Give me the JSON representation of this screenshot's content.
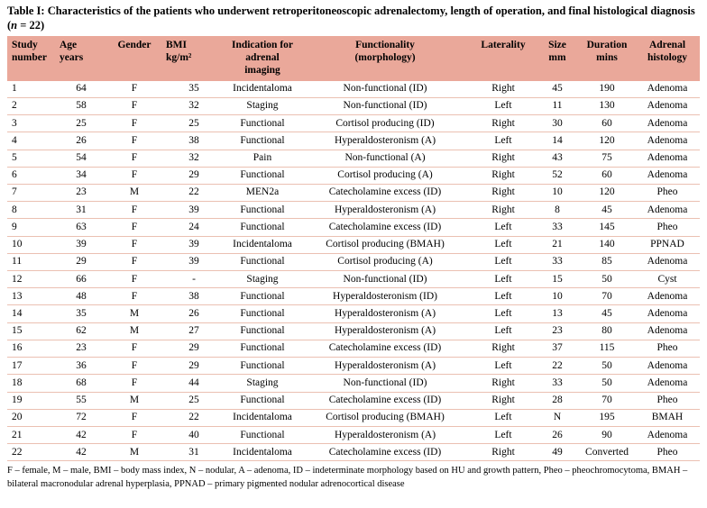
{
  "title": {
    "line1": "Table I: Characteristics of the patients who underwent retroperitoneoscopic adrenalectomy, length of operation, and final histological diagnosis",
    "open": "(",
    "n_symbol": "n",
    "rest": " = 22)"
  },
  "table": {
    "headers": [
      "Study\nnumber",
      "Age\nyears",
      "Gender",
      "BMI\nkg/m²",
      "Indication for\nadrenal imaging",
      "Functionality\n(morphology)",
      "Laterality",
      "Size\nmm",
      "Duration\nmins",
      "Adrenal\nhistology"
    ],
    "rows": [
      [
        "1",
        "64",
        "F",
        "35",
        "Incidentaloma",
        "Non-functional (ID)",
        "Right",
        "45",
        "190",
        "Adenoma"
      ],
      [
        "2",
        "58",
        "F",
        "32",
        "Staging",
        "Non-functional (ID)",
        "Left",
        "11",
        "130",
        "Adenoma"
      ],
      [
        "3",
        "25",
        "F",
        "25",
        "Functional",
        "Cortisol producing (ID)",
        "Right",
        "30",
        "60",
        "Adenoma"
      ],
      [
        "4",
        "26",
        "F",
        "38",
        "Functional",
        "Hyperaldosteronism (A)",
        "Left",
        "14",
        "120",
        "Adenoma"
      ],
      [
        "5",
        "54",
        "F",
        "32",
        "Pain",
        "Non-functional (A)",
        "Right",
        "43",
        "75",
        "Adenoma"
      ],
      [
        "6",
        "34",
        "F",
        "29",
        "Functional",
        "Cortisol producing (A)",
        "Right",
        "52",
        "60",
        "Adenoma"
      ],
      [
        "7",
        "23",
        "M",
        "22",
        "MEN2a",
        "Catecholamine excess (ID)",
        "Right",
        "10",
        "120",
        "Pheo"
      ],
      [
        "8",
        "31",
        "F",
        "39",
        "Functional",
        "Hyperaldosteronism (A)",
        "Right",
        "8",
        "45",
        "Adenoma"
      ],
      [
        "9",
        "63",
        "F",
        "24",
        "Functional",
        "Catecholamine excess (ID)",
        "Left",
        "33",
        "145",
        "Pheo"
      ],
      [
        "10",
        "39",
        "F",
        "39",
        "Incidentaloma",
        "Cortisol producing (BMAH)",
        "Left",
        "21",
        "140",
        "PPNAD"
      ],
      [
        "11",
        "29",
        "F",
        "39",
        "Functional",
        "Cortisol producing (A)",
        "Left",
        "33",
        "85",
        "Adenoma"
      ],
      [
        "12",
        "66",
        "F",
        "-",
        "Staging",
        "Non-functional (ID)",
        "Left",
        "15",
        "50",
        "Cyst"
      ],
      [
        "13",
        "48",
        "F",
        "38",
        "Functional",
        "Hyperaldosteronism (ID)",
        "Left",
        "10",
        "70",
        "Adenoma"
      ],
      [
        "14",
        "35",
        "M",
        "26",
        "Functional",
        "Hyperaldosteronism (A)",
        "Left",
        "13",
        "45",
        "Adenoma"
      ],
      [
        "15",
        "62",
        "M",
        "27",
        "Functional",
        "Hyperaldosteronism (A)",
        "Left",
        "23",
        "80",
        "Adenoma"
      ],
      [
        "16",
        "23",
        "F",
        "29",
        "Functional",
        "Catecholamine excess (ID)",
        "Right",
        "37",
        "115",
        "Pheo"
      ],
      [
        "17",
        "36",
        "F",
        "29",
        "Functional",
        "Hyperaldosteronism (A)",
        "Left",
        "22",
        "50",
        "Adenoma"
      ],
      [
        "18",
        "68",
        "F",
        "44",
        "Staging",
        "Non-functional (ID)",
        "Right",
        "33",
        "50",
        "Adenoma"
      ],
      [
        "19",
        "55",
        "M",
        "25",
        "Functional",
        "Catecholamine excess (ID)",
        "Right",
        "28",
        "70",
        "Pheo"
      ],
      [
        "20",
        "72",
        "F",
        "22",
        "Incidentaloma",
        "Cortisol producing (BMAH)",
        "Left",
        "N",
        "195",
        "BMAH"
      ],
      [
        "21",
        "42",
        "F",
        "40",
        "Functional",
        "Hyperaldosteronism (A)",
        "Left",
        "26",
        "90",
        "Adenoma"
      ],
      [
        "22",
        "42",
        "M",
        "31",
        "Incidentaloma",
        "Catecholamine excess (ID)",
        "Right",
        "49",
        "Converted",
        "Pheo"
      ]
    ]
  },
  "footnote": "F – female, M – male, BMI – body mass index, N – nodular, A – adenoma, ID – indeterminate morphology based on HU and growth pattern, Pheo – pheochromocytoma, BMAH – bilateral macronodular adrenal hyperplasia, PPNAD – primary pigmented nodular adrenocortical disease",
  "colors": {
    "header_bg": "#EAA89A",
    "row_line": "#EBC0B2"
  }
}
